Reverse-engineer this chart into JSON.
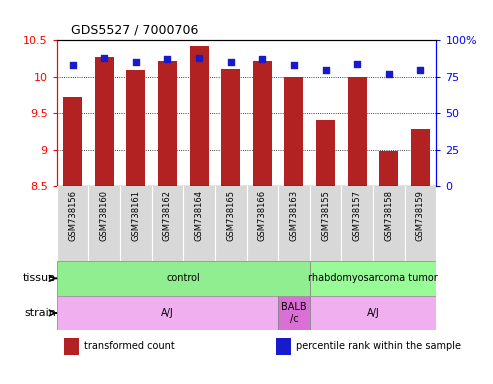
{
  "title": "GDS5527 / 7000706",
  "samples": [
    "GSM738156",
    "GSM738160",
    "GSM738161",
    "GSM738162",
    "GSM738164",
    "GSM738165",
    "GSM738166",
    "GSM738163",
    "GSM738155",
    "GSM738157",
    "GSM738158",
    "GSM738159"
  ],
  "transformed_count": [
    9.72,
    10.27,
    10.1,
    10.22,
    10.42,
    10.11,
    10.22,
    10.0,
    9.41,
    10.0,
    8.98,
    9.28
  ],
  "percentile_rank": [
    83,
    88,
    85,
    87,
    88,
    85,
    87,
    83,
    80,
    84,
    77,
    80
  ],
  "ylim_left": [
    8.5,
    10.5
  ],
  "ylim_right": [
    0,
    100
  ],
  "bar_color": "#b22222",
  "dot_color": "#1a1acd",
  "tissue_groups": [
    {
      "label": "control",
      "start": 0,
      "end": 8,
      "color": "#90ee90"
    },
    {
      "label": "rhabdomyosarcoma tumor",
      "start": 8,
      "end": 12,
      "color": "#98fb98"
    }
  ],
  "strain_groups": [
    {
      "label": "A/J",
      "start": 0,
      "end": 7,
      "color": "#f0b0f0"
    },
    {
      "label": "BALB\n/c",
      "start": 7,
      "end": 8,
      "color": "#da70d6"
    },
    {
      "label": "A/J",
      "start": 8,
      "end": 12,
      "color": "#f0b0f0"
    }
  ],
  "bar_base": 8.5,
  "left_yticks": [
    8.5,
    9.0,
    9.5,
    10.0,
    10.5
  ],
  "left_yticklabels": [
    "8.5",
    "9",
    "9.5",
    "10",
    "10.5"
  ],
  "right_yticks": [
    0,
    25,
    50,
    75,
    100
  ],
  "right_yticklabels": [
    "0",
    "25",
    "50",
    "75",
    "100%"
  ],
  "legend_items": [
    {
      "label": "transformed count",
      "color": "#b22222"
    },
    {
      "label": "percentile rank within the sample",
      "color": "#1a1acd"
    }
  ]
}
